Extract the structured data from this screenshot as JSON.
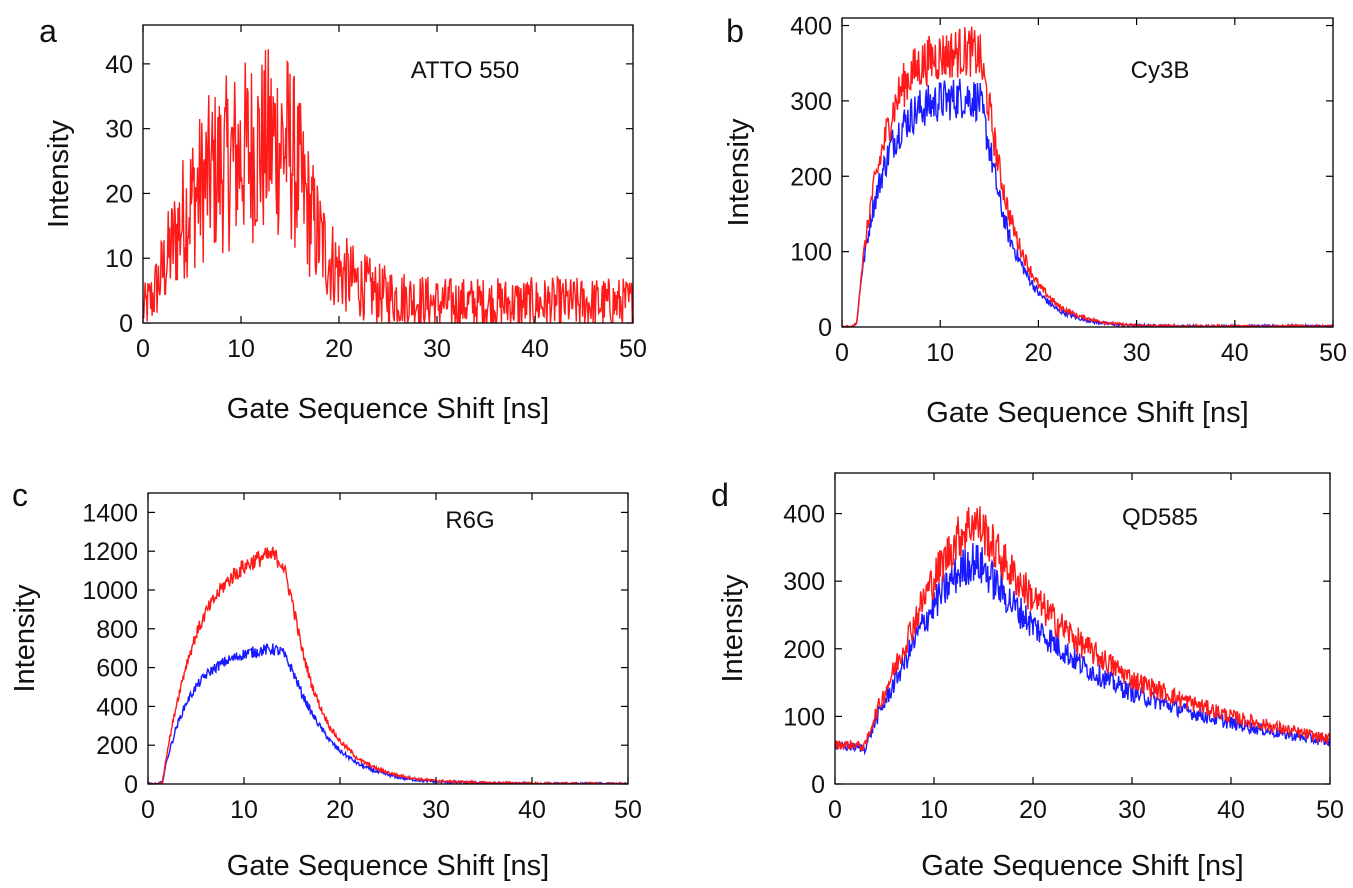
{
  "colors": {
    "series_red": "#ff1a1a",
    "series_blue": "#1a1aff",
    "axis": "#000000",
    "background": "#ffffff"
  },
  "chart_data": [
    {
      "panel_label": "a",
      "type": "line",
      "annotation": "ATTO 550",
      "xlabel": "Gate Sequence Shift [ns]",
      "ylabel": "Intensity",
      "xlim": [
        0,
        50
      ],
      "ylim": [
        0,
        46
      ],
      "xticks": [
        0,
        10,
        20,
        30,
        40,
        50
      ],
      "yticks": [
        0,
        10,
        20,
        30,
        40
      ],
      "grid": false,
      "noise": "high",
      "series": [
        {
          "color": "#ff1a1a",
          "x": [
            0,
            1,
            2,
            3,
            4,
            5,
            6,
            7,
            8,
            9,
            10,
            11,
            12,
            13,
            14,
            15,
            16,
            17,
            18,
            19,
            20,
            22,
            24,
            26,
            28,
            30,
            35,
            40,
            45,
            50
          ],
          "y": [
            2,
            4,
            8,
            12,
            16,
            19,
            21,
            23,
            24,
            25,
            26,
            27,
            27,
            28,
            28,
            27,
            22,
            17,
            13,
            10,
            8,
            6,
            4.5,
            4,
            3.5,
            3,
            3,
            3,
            3,
            3
          ]
        }
      ]
    },
    {
      "panel_label": "b",
      "type": "line",
      "annotation": "Cy3B",
      "xlabel": "Gate Sequence Shift [ns]",
      "ylabel": "Intensity",
      "xlim": [
        0,
        50
      ],
      "ylim": [
        0,
        410
      ],
      "xticks": [
        0,
        10,
        20,
        30,
        40,
        50
      ],
      "yticks": [
        0,
        100,
        200,
        300,
        400
      ],
      "grid": false,
      "noise": "medium",
      "series": [
        {
          "color": "#1a1aff",
          "x": [
            0,
            1,
            1.5,
            2,
            3,
            4,
            5,
            6,
            7,
            8,
            9,
            10,
            11,
            12,
            13,
            14,
            15,
            16,
            17,
            18,
            19,
            20,
            22,
            24,
            26,
            28,
            30,
            35,
            40,
            50
          ],
          "y": [
            0,
            0,
            5,
            70,
            150,
            200,
            240,
            265,
            280,
            290,
            295,
            300,
            302,
            305,
            305,
            300,
            240,
            170,
            120,
            90,
            65,
            45,
            22,
            12,
            6,
            3,
            2,
            1,
            1,
            1
          ]
        },
        {
          "color": "#ff1a1a",
          "x": [
            0,
            1,
            1.5,
            2,
            3,
            4,
            5,
            6,
            7,
            8,
            9,
            10,
            11,
            12,
            13,
            14,
            15,
            16,
            17,
            18,
            19,
            20,
            22,
            24,
            26,
            28,
            30,
            35,
            40,
            50
          ],
          "y": [
            0,
            0,
            5,
            75,
            170,
            230,
            280,
            315,
            335,
            348,
            355,
            360,
            362,
            365,
            366,
            360,
            290,
            210,
            150,
            110,
            80,
            55,
            28,
            15,
            8,
            4,
            2,
            1,
            1,
            1
          ]
        }
      ]
    },
    {
      "panel_label": "c",
      "type": "line",
      "annotation": "R6G",
      "xlabel": "Gate Sequence Shift [ns]",
      "ylabel": "Intensity",
      "xlim": [
        0,
        50
      ],
      "ylim": [
        0,
        1500
      ],
      "xticks": [
        0,
        10,
        20,
        30,
        40,
        50
      ],
      "yticks": [
        0,
        200,
        400,
        600,
        800,
        1000,
        1200,
        1400
      ],
      "grid": false,
      "noise": "low",
      "series": [
        {
          "color": "#1a1aff",
          "x": [
            0,
            1,
            1.5,
            2,
            3,
            4,
            5,
            6,
            7,
            8,
            9,
            10,
            11,
            12,
            13,
            14,
            15,
            16,
            17,
            18,
            19,
            20,
            22,
            24,
            26,
            28,
            30,
            35,
            40,
            45,
            50
          ],
          "y": [
            0,
            0,
            10,
            130,
            300,
            420,
            500,
            560,
            600,
            630,
            650,
            670,
            680,
            690,
            695,
            680,
            590,
            470,
            370,
            290,
            220,
            170,
            100,
            60,
            35,
            20,
            12,
            5,
            2,
            1,
            1
          ]
        },
        {
          "color": "#ff1a1a",
          "x": [
            0,
            1,
            1.5,
            2,
            3,
            4,
            5,
            6,
            7,
            8,
            9,
            10,
            11,
            12,
            13,
            14,
            15,
            16,
            17,
            18,
            19,
            20,
            22,
            24,
            26,
            28,
            30,
            35,
            40,
            45,
            50
          ],
          "y": [
            0,
            0,
            10,
            170,
            420,
            620,
            770,
            880,
            960,
            1030,
            1080,
            1120,
            1150,
            1170,
            1180,
            1140,
            950,
            700,
            520,
            390,
            290,
            220,
            125,
            75,
            45,
            27,
            16,
            6,
            3,
            1,
            1
          ]
        }
      ]
    },
    {
      "panel_label": "d",
      "type": "line",
      "annotation": "QD585",
      "xlabel": "Gate Sequence Shift [ns]",
      "ylabel": "Intensity",
      "xlim": [
        0,
        50
      ],
      "ylim": [
        0,
        460
      ],
      "xticks": [
        0,
        10,
        20,
        30,
        40,
        50
      ],
      "yticks": [
        0,
        100,
        200,
        300,
        400
      ],
      "grid": false,
      "noise": "medium",
      "series": [
        {
          "color": "#1a1aff",
          "x": [
            0,
            1,
            2,
            3,
            4,
            5,
            6,
            7,
            8,
            9,
            10,
            11,
            12,
            13,
            14,
            15,
            16,
            18,
            20,
            22,
            25,
            28,
            30,
            35,
            40,
            45,
            50
          ],
          "y": [
            55,
            55,
            55,
            52,
            90,
            120,
            150,
            180,
            210,
            240,
            265,
            285,
            305,
            320,
            330,
            320,
            300,
            265,
            235,
            210,
            175,
            150,
            135,
            110,
            90,
            75,
            62
          ]
        },
        {
          "color": "#ff1a1a",
          "x": [
            0,
            1,
            2,
            3,
            4,
            5,
            6,
            7,
            8,
            9,
            10,
            11,
            12,
            13,
            14,
            15,
            16,
            18,
            20,
            22,
            25,
            28,
            30,
            35,
            40,
            45,
            50
          ],
          "y": [
            58,
            58,
            58,
            55,
            100,
            135,
            170,
            205,
            240,
            275,
            305,
            330,
            355,
            375,
            390,
            375,
            350,
            310,
            275,
            245,
            205,
            175,
            155,
            125,
            100,
            82,
            66
          ]
        }
      ]
    }
  ]
}
